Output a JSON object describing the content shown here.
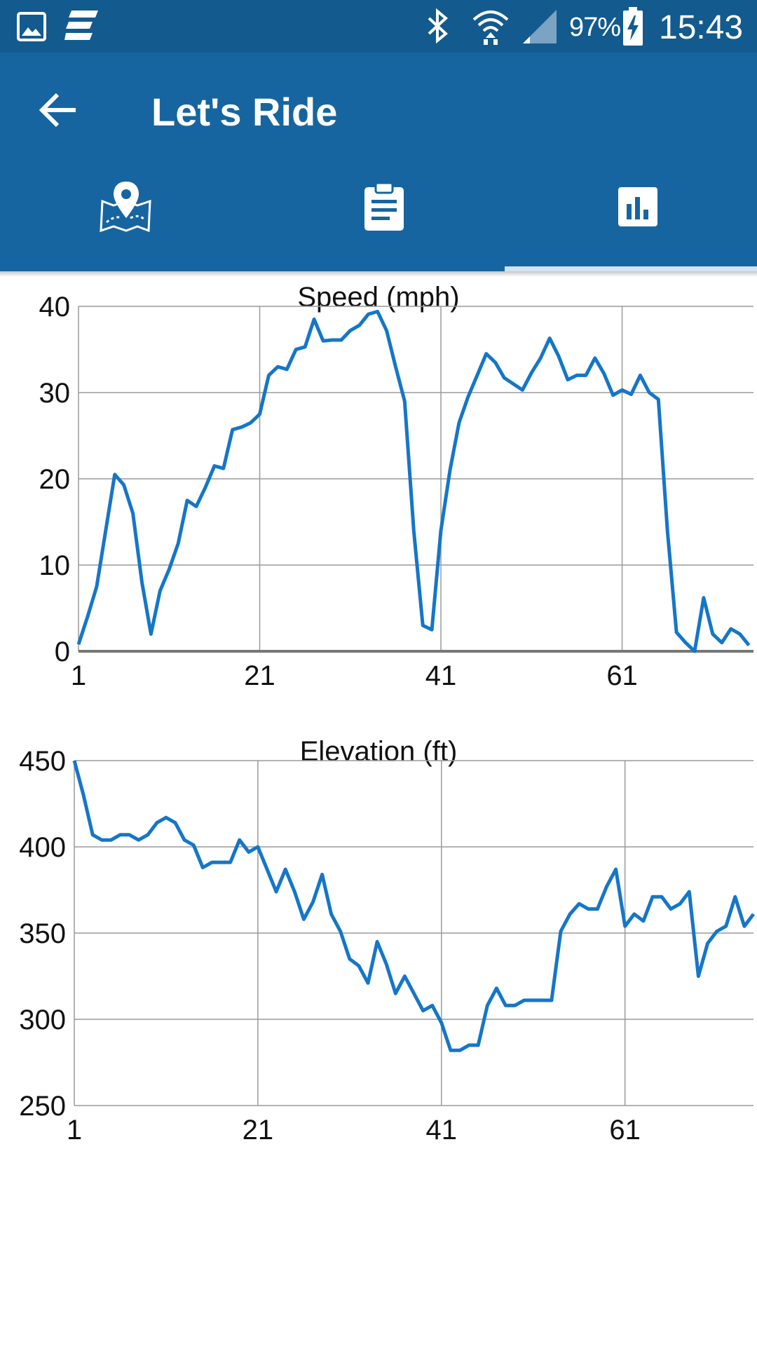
{
  "status_bar": {
    "battery": "97%",
    "time": "15:43",
    "icons": [
      "gallery-icon",
      "app-e-icon",
      "bluetooth-icon",
      "wifi-icon",
      "signal-icon",
      "battery-charging-icon"
    ]
  },
  "app_bar": {
    "title": "Let's Ride",
    "back_icon": "arrow-back-icon",
    "tabs": [
      {
        "icon": "map-pin-icon",
        "selected": false
      },
      {
        "icon": "clipboard-icon",
        "selected": false
      },
      {
        "icon": "bar-chart-icon",
        "selected": true
      }
    ]
  },
  "colors": {
    "status_bar": "#135a8e",
    "app_bar": "#1765a0",
    "line": "#1576c8",
    "grid": "#9a9a9a"
  },
  "chart_data": [
    {
      "type": "line",
      "title": "Speed (mph)",
      "xlabel": "",
      "ylabel": "",
      "ylim": [
        0,
        40
      ],
      "yticks": [
        "0",
        "10",
        "20",
        "30",
        "40"
      ],
      "xticks": [
        "1",
        "21",
        "41",
        "61"
      ],
      "xlim": [
        1,
        75.5
      ],
      "grid": true,
      "series": [
        {
          "values": [
            0.8,
            4,
            7.5,
            14,
            20.5,
            19.3,
            16,
            8,
            2,
            7,
            9.5,
            12.5,
            17.5,
            16.8,
            19,
            21.5,
            21.2,
            25.7,
            26,
            26.5,
            27.5,
            32,
            33,
            32.7,
            35,
            35.3,
            38.5,
            36,
            36.1,
            36.1,
            37.2,
            37.8,
            39.1,
            39.4,
            37.2,
            33,
            29,
            14,
            3,
            2.5,
            14,
            21,
            26.5,
            29.5,
            32,
            34.5,
            33.5,
            31.7,
            31,
            30.3,
            32.3,
            34,
            36.3,
            34.2,
            31.5,
            32,
            32,
            34,
            32.2,
            29.7,
            30.3,
            29.8,
            32,
            30,
            29.2,
            14,
            2.2,
            1,
            0,
            6.2,
            2,
            1,
            2.6,
            2,
            0.7
          ]
        }
      ]
    },
    {
      "type": "line",
      "title": "Elevation (ft)",
      "xlabel": "",
      "ylabel": "",
      "ylim": [
        250,
        450
      ],
      "yticks": [
        "250",
        "300",
        "350",
        "400",
        "450"
      ],
      "xticks": [
        "1",
        "21",
        "41",
        "61"
      ],
      "xlim": [
        1,
        75
      ],
      "grid": true,
      "series": [
        {
          "values": [
            450,
            430,
            407,
            404,
            404,
            407,
            407,
            404,
            407,
            414,
            417,
            414,
            404,
            401,
            388,
            391,
            391,
            391,
            404,
            397,
            400,
            387,
            374,
            387,
            374,
            358,
            368,
            384,
            361,
            351,
            335,
            331,
            321,
            345,
            332,
            315,
            325,
            315,
            305,
            308,
            298,
            282,
            282,
            285,
            285,
            308,
            318,
            308,
            308,
            311,
            311,
            311,
            311,
            351,
            361,
            367,
            364,
            364,
            377,
            387,
            354,
            361,
            357,
            371,
            371,
            364,
            367,
            374,
            325,
            344,
            351,
            354,
            371,
            354,
            361
          ]
        }
      ]
    }
  ]
}
